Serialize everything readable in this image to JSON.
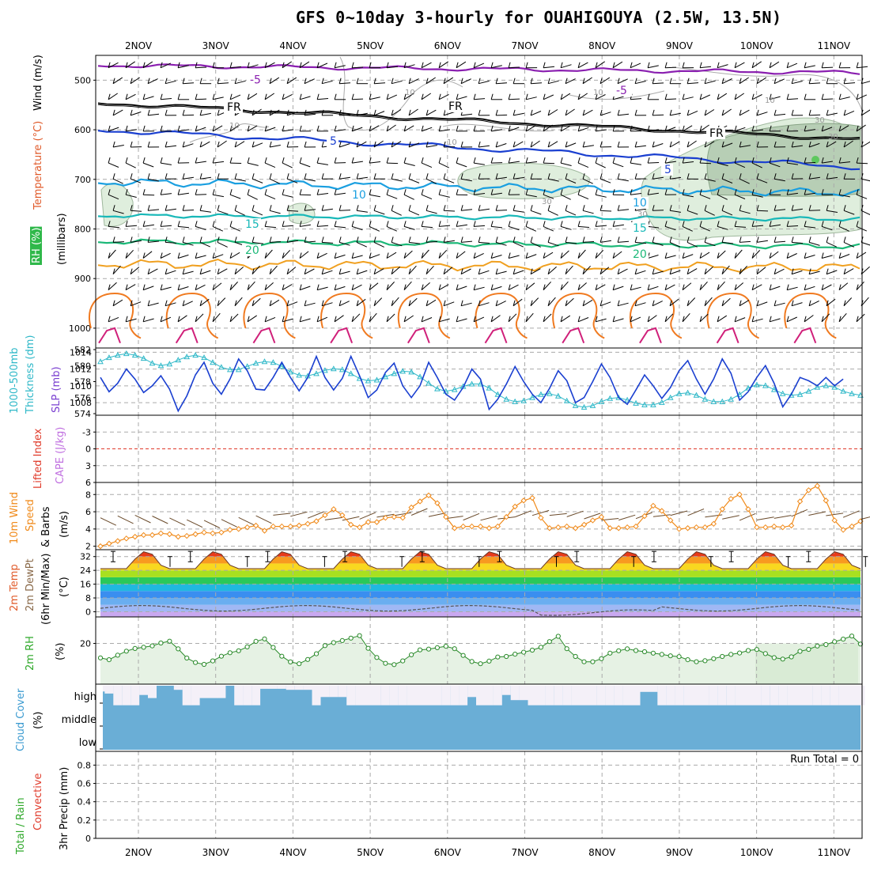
{
  "title": "GFS 0~10day 3-hourly for OUAHIGOUYA (2.5W, 13.5N)",
  "dates": [
    "2NOV",
    "3NOV",
    "4NOV",
    "5NOV",
    "6NOV",
    "7NOV",
    "8NOV",
    "9NOV",
    "10NOV",
    "11NOV"
  ],
  "chart_data": [
    {
      "panel": "upper-air",
      "type": "contour",
      "axis_labels": [
        {
          "text": "RH (%)",
          "color": "#ffffff",
          "bg": "#2fb84a"
        },
        {
          "text": "Temperature (°C)",
          "color": "#e05a2a"
        },
        {
          "text": "Wind (m/s)",
          "color": "#000000"
        },
        {
          "text": "(millibars)",
          "color": "#000000"
        }
      ],
      "y_ticks": [
        500,
        600,
        700,
        800,
        900,
        1000
      ],
      "ylim": [
        1040,
        450
      ],
      "y_scale": "linear-pressure",
      "grid": true,
      "isotherm_labels": [
        {
          "label": "-5",
          "color": "#8a1fb0"
        },
        {
          "label": "-5",
          "color": "#8a1fb0"
        },
        {
          "label": "FR",
          "color": "#000000"
        },
        {
          "label": "FR",
          "color": "#000000"
        },
        {
          "label": "FR",
          "color": "#000000"
        },
        {
          "label": "5",
          "color": "#1a3fd0"
        },
        {
          "label": "5",
          "color": "#1a3fd0"
        },
        {
          "label": "10",
          "color": "#1a9fe0"
        },
        {
          "label": "10",
          "color": "#1a9fe0"
        },
        {
          "label": "15",
          "color": "#18b8b8"
        },
        {
          "label": "15",
          "color": "#18b8b8"
        },
        {
          "label": "20",
          "color": "#1cb878"
        },
        {
          "label": "20",
          "color": "#1cb878"
        }
      ],
      "rh_labels": [
        "10",
        "10",
        "10",
        "10",
        "10",
        "30",
        "30",
        "30",
        "30"
      ]
    },
    {
      "panel": "thickness-slp",
      "type": "line",
      "axis_labels": [
        {
          "text": "1000-500mb",
          "color": "#2fb8c8"
        },
        {
          "text": "Thickness (dm)",
          "color": "#2fb8c8"
        },
        {
          "text": "SLP (mb)",
          "color": "#7a3fd0"
        }
      ],
      "left_ticks": [
        574,
        576,
        578,
        580,
        582
      ],
      "right_ticks": [
        1008,
        1010,
        1012,
        1014
      ],
      "left_range": [
        574,
        582
      ],
      "right_range": [
        1006.5,
        1014.5
      ],
      "series": [
        {
          "name": "1000-500mb Thickness",
          "axis": "left",
          "color": "#2fb8c8",
          "values": [
            580.5,
            581.0,
            581.3,
            581.5,
            581.3,
            580.9,
            580.3,
            580.0,
            580.2,
            580.7,
            581.1,
            581.3,
            581.0,
            580.4,
            579.8,
            579.5,
            579.5,
            579.9,
            580.3,
            580.5,
            580.4,
            579.9,
            579.2,
            578.8,
            578.7,
            579.0,
            579.4,
            579.6,
            579.5,
            579.0,
            578.4,
            578.1,
            578.2,
            578.6,
            579.0,
            579.3,
            579.2,
            578.6,
            577.8,
            577.1,
            576.8,
            577.0,
            577.4,
            577.7,
            577.7,
            577.2,
            576.4,
            575.8,
            575.5,
            575.6,
            576.0,
            576.4,
            576.5,
            576.2,
            575.6,
            575.0,
            574.8,
            575.0,
            575.5,
            575.9,
            576.0,
            575.7,
            575.3,
            575.1,
            575.1,
            575.4,
            576.0,
            576.5,
            576.6,
            576.3,
            575.8,
            575.5,
            575.5,
            575.8,
            576.4,
            577.2,
            577.6,
            577.5,
            577.0,
            576.5,
            576.3,
            576.4,
            576.8,
            577.3,
            577.5,
            577.3,
            576.8,
            576.5,
            576.3
          ]
        },
        {
          "name": "SLP",
          "axis": "right",
          "color": "#1a3fd0",
          "values": [
            1011.0,
            1009.3,
            1010.3,
            1012.0,
            1010.8,
            1009.2,
            1010.0,
            1011.2,
            1009.6,
            1007.0,
            1008.8,
            1011.3,
            1012.8,
            1010.3,
            1009.0,
            1010.8,
            1013.2,
            1011.8,
            1009.6,
            1009.5,
            1011.0,
            1012.8,
            1011.0,
            1009.4,
            1011.0,
            1013.5,
            1011.0,
            1009.5,
            1010.9,
            1013.5,
            1011.2,
            1008.6,
            1009.5,
            1011.6,
            1012.7,
            1010.0,
            1008.6,
            1010.0,
            1012.8,
            1011.0,
            1009.0,
            1008.3,
            1009.8,
            1012.0,
            1010.8,
            1007.2,
            1008.4,
            1010.2,
            1012.3,
            1010.5,
            1009.0,
            1008.0,
            1009.7,
            1011.8,
            1010.6,
            1008.0,
            1008.6,
            1010.5,
            1012.6,
            1011.0,
            1008.6,
            1007.8,
            1009.5,
            1011.3,
            1010.0,
            1008.5,
            1009.8,
            1011.8,
            1013.0,
            1010.8,
            1009.0,
            1010.8,
            1013.2,
            1011.5,
            1008.3,
            1009.3,
            1011.0,
            1012.4,
            1010.3,
            1007.5,
            1009.0,
            1011.0,
            1010.6,
            1010.0,
            1011.0,
            1010.0,
            1010.8
          ]
        }
      ]
    },
    {
      "panel": "instability",
      "type": "line",
      "axis_labels": [
        {
          "text": "Lifted Index",
          "color": "#e03a2a"
        },
        {
          "text": "CAPE (J/kg)",
          "color": "#c070e0"
        }
      ],
      "y_ticks": [
        "-3",
        "0",
        "3",
        "6"
      ],
      "ylim": [
        -6,
        6
      ],
      "reference_line": 0
    },
    {
      "panel": "10m-wind",
      "type": "line",
      "axis_labels": [
        {
          "text": "10m Wind",
          "color": "#f08a1a"
        },
        {
          "text": "Speed",
          "color": "#f08a1a"
        },
        {
          "text": "& Barbs",
          "color": "#000000"
        },
        {
          "text": "(m/s)",
          "color": "#000000"
        }
      ],
      "y_ticks": [
        2,
        4,
        6,
        8
      ],
      "ylim": [
        1.6,
        9.4
      ],
      "series": [
        {
          "name": "10m Wind Speed",
          "color": "#f08a1a",
          "values": [
            2.0,
            2.3,
            2.6,
            2.9,
            3.1,
            3.3,
            3.3,
            3.5,
            3.4,
            3.1,
            3.2,
            3.4,
            3.6,
            3.5,
            3.6,
            3.9,
            4.0,
            4.2,
            4.4,
            3.8,
            4.3,
            4.3,
            4.3,
            4.4,
            4.6,
            4.9,
            5.6,
            6.3,
            5.6,
            4.5,
            4.2,
            4.8,
            4.8,
            5.3,
            5.4,
            5.3,
            6.5,
            7.2,
            7.9,
            7.0,
            5.4,
            4.1,
            4.3,
            4.3,
            4.3,
            4.1,
            4.3,
            5.4,
            6.6,
            7.3,
            7.6,
            5.3,
            4.1,
            4.2,
            4.3,
            4.1,
            4.5,
            5.0,
            5.4,
            4.1,
            4.1,
            4.2,
            4.3,
            5.5,
            6.7,
            6.1,
            5.0,
            4.0,
            4.1,
            4.2,
            4.2,
            4.6,
            6.3,
            7.5,
            8.0,
            6.3,
            4.2,
            4.2,
            4.3,
            4.2,
            4.4,
            7.2,
            8.5,
            9.0,
            7.3,
            5.0,
            3.9,
            4.3,
            4.9
          ]
        }
      ]
    },
    {
      "panel": "2m-temp",
      "type": "area",
      "axis_labels": [
        {
          "text": "2m Temp",
          "color": "#e05a2a"
        },
        {
          "text": "2m DewPt",
          "color": "#8a6a4a"
        },
        {
          "text": "(6hr Min/Max)",
          "color": "#000000"
        },
        {
          "text": "(°C)",
          "color": "#000000"
        }
      ],
      "y_ticks": [
        0,
        8,
        16,
        24,
        32
      ],
      "ylim": [
        -3,
        36
      ],
      "temp_range_per_day": {
        "min": 25,
        "max": 35
      },
      "dewpoint_approx": 2
    },
    {
      "panel": "2m-rh",
      "type": "area",
      "axis_labels": [
        {
          "text": "2m RH",
          "color": "#2fa82a"
        },
        {
          "text": "(%)",
          "color": "#000000"
        }
      ],
      "y_ticks": [
        20
      ],
      "ylim": [
        0,
        33
      ],
      "series": [
        {
          "name": "2m RH",
          "color": "#2a8a2a",
          "values": [
            12.9,
            12.0,
            14.2,
            16.2,
            17.5,
            18.1,
            18.8,
            20.2,
            21.1,
            17.3,
            12.8,
            10.6,
            9.7,
            11.4,
            13.7,
            15.4,
            16.4,
            18.3,
            21.0,
            22.2,
            18.0,
            13.7,
            10.9,
            10.0,
            12.1,
            14.9,
            18.9,
            20.4,
            21.4,
            22.6,
            23.8,
            17.6,
            13.1,
            10.2,
            9.6,
            11.4,
            14.4,
            16.8,
            17.2,
            17.9,
            18.6,
            17.4,
            14.1,
            11.1,
            10.0,
            11.3,
            13.3,
            13.6,
            14.7,
            15.7,
            16.7,
            18.1,
            20.9,
            23.5,
            17.4,
            13.6,
            11.0,
            11.0,
            12.5,
            15.2,
            16.4,
            17.3,
            16.5,
            15.9,
            15.2,
            14.6,
            13.9,
            13.5,
            12.0,
            11.0,
            11.5,
            12.5,
            13.6,
            14.6,
            15.3,
            16.5,
            17.0,
            15.0,
            13.0,
            12.3,
            13.4,
            16.1,
            17.1,
            18.7,
            19.4,
            20.8,
            22.1,
            23.6,
            19.7
          ]
        }
      ]
    },
    {
      "panel": "cloud-cover",
      "type": "bar",
      "axis_labels": [
        {
          "text": "Cloud Cover",
          "color": "#3a9ad0"
        },
        {
          "text": "(%)",
          "color": "#000000"
        }
      ],
      "y_tick_labels": [
        "high",
        "middle",
        "low"
      ],
      "layers": [
        "high",
        "middle",
        "low"
      ],
      "high_cover_pct": [
        72,
        62,
        5,
        5,
        5,
        55,
        40,
        100,
        100,
        80,
        5,
        5,
        40,
        40,
        40,
        100,
        5,
        5,
        5,
        85,
        85,
        85,
        80,
        80,
        80,
        5,
        45,
        45,
        45,
        5,
        5,
        5,
        5,
        5,
        5,
        5,
        5,
        5,
        5,
        5,
        5,
        5,
        5,
        45,
        5,
        5,
        5,
        55,
        30,
        30,
        5,
        5,
        5,
        5,
        5,
        5,
        5,
        5,
        5,
        5,
        5,
        5,
        5,
        70,
        70,
        5,
        5,
        5,
        5,
        5,
        5,
        5,
        5,
        5,
        5,
        5,
        5,
        5,
        5,
        5,
        5,
        5,
        5,
        5,
        5,
        5,
        5,
        5,
        5
      ],
      "fill_colors": {
        "sky": "#6aaed6",
        "clear": "#f4f0f8"
      }
    },
    {
      "panel": "precip",
      "type": "bar",
      "axis_labels": [
        {
          "text": "Total / Rain",
          "color": "#2fa82a"
        },
        {
          "text": "Convective",
          "color": "#e03a2a"
        },
        {
          "text": "3hr Precip (mm)",
          "color": "#000000"
        }
      ],
      "y_ticks": [
        0,
        0.2,
        0.4,
        0.6,
        0.8
      ],
      "ylim": [
        0,
        0.95
      ],
      "run_total_label": "Run Total = 0",
      "values": []
    }
  ]
}
